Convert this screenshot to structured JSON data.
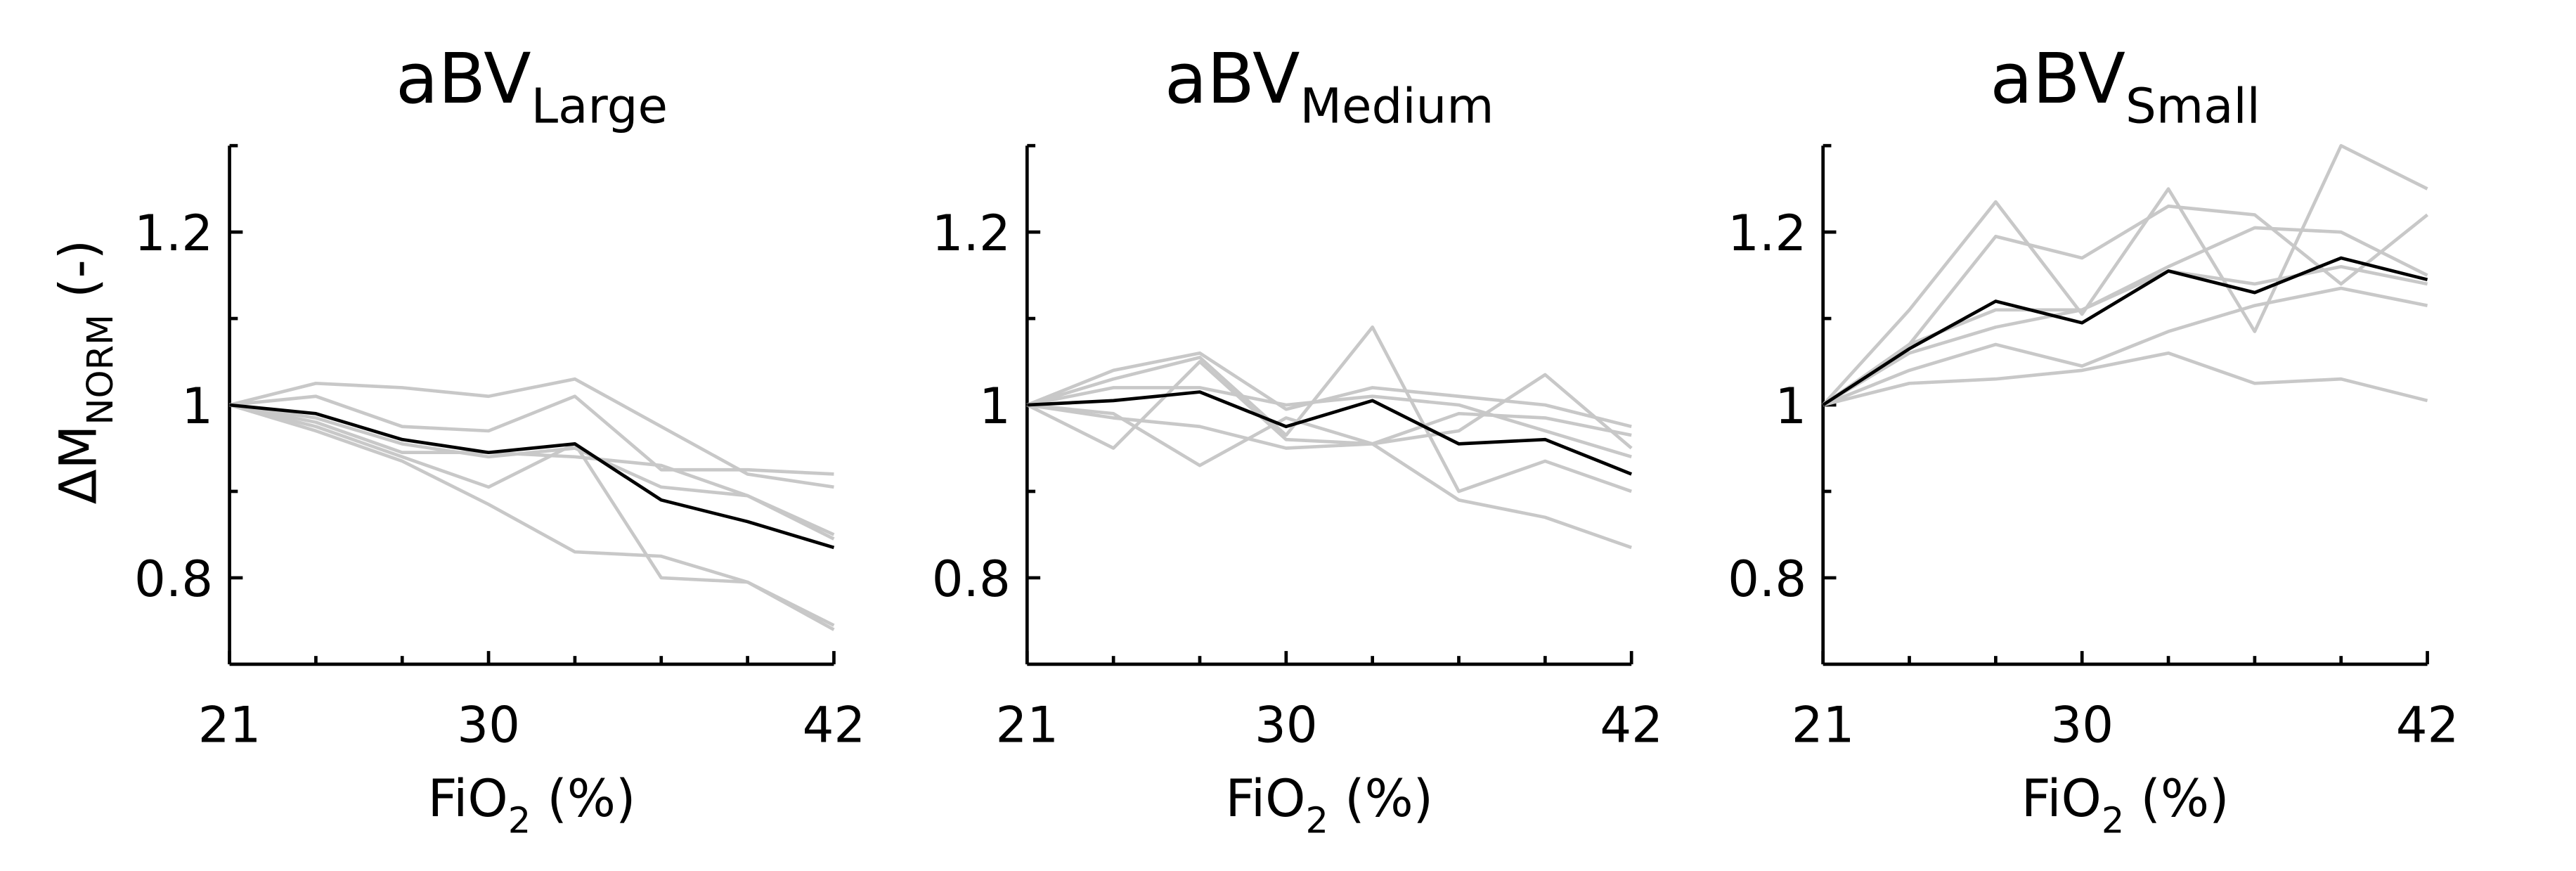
{
  "chart_data": [
    {
      "type": "line",
      "title": "aBV",
      "title_sub": "Large",
      "y_label": {
        "text": "ΔM",
        "sub": "NORM",
        "suffix": " (-)"
      },
      "x_label": {
        "text": "FiO",
        "sub": "2",
        "suffix": " (%)"
      },
      "x": [
        21,
        24,
        27,
        30,
        33,
        36,
        39,
        42
      ],
      "xlim": [
        21,
        42
      ],
      "xticks": [
        21,
        30,
        42
      ],
      "xminor": [
        24,
        27,
        33,
        36,
        39
      ],
      "ylim": [
        0.7,
        1.3
      ],
      "yticks": [
        0.8,
        1.0,
        1.2
      ],
      "yminor": [
        0.9,
        1.1,
        1.3
      ],
      "series": [
        {
          "color": "#c8c8c8",
          "values": [
            1.0,
            1.025,
            1.02,
            1.01,
            1.03,
            0.975,
            0.92,
            0.905
          ]
        },
        {
          "color": "#c8c8c8",
          "values": [
            1.0,
            1.01,
            0.975,
            0.97,
            1.01,
            0.925,
            0.925,
            0.92
          ]
        },
        {
          "color": "#c8c8c8",
          "values": [
            1.0,
            0.975,
            0.94,
            0.905,
            0.955,
            0.8,
            0.795,
            0.745
          ]
        },
        {
          "color": "#c8c8c8",
          "values": [
            1.0,
            0.97,
            0.935,
            0.885,
            0.83,
            0.825,
            0.795,
            0.74
          ]
        },
        {
          "color": "#c8c8c8",
          "values": [
            1.0,
            0.98,
            0.945,
            0.945,
            0.94,
            0.93,
            0.895,
            0.85
          ]
        },
        {
          "color": "#c8c8c8",
          "values": [
            1.0,
            0.985,
            0.955,
            0.94,
            0.95,
            0.905,
            0.895,
            0.845
          ]
        },
        {
          "color": "#000000",
          "values": [
            1.0,
            0.99,
            0.96,
            0.945,
            0.955,
            0.89,
            0.865,
            0.835
          ]
        }
      ]
    },
    {
      "type": "line",
      "title": "aBV",
      "title_sub": "Medium",
      "x_label": {
        "text": "FiO",
        "sub": "2",
        "suffix": " (%)"
      },
      "x": [
        21,
        24,
        27,
        30,
        33,
        36,
        39,
        42
      ],
      "xlim": [
        21,
        42
      ],
      "xticks": [
        21,
        30,
        42
      ],
      "xminor": [
        24,
        27,
        33,
        36,
        39
      ],
      "ylim": [
        0.7,
        1.3
      ],
      "yticks": [
        0.8,
        1.0,
        1.2
      ],
      "yminor": [
        0.9,
        1.1,
        1.3
      ],
      "series": [
        {
          "color": "#c8c8c8",
          "values": [
            1.0,
            1.04,
            1.06,
            0.995,
            1.02,
            1.01,
            1.0,
            0.975
          ]
        },
        {
          "color": "#c8c8c8",
          "values": [
            1.0,
            1.03,
            1.055,
            0.965,
            1.09,
            0.9,
            0.935,
            0.9
          ]
        },
        {
          "color": "#c8c8c8",
          "values": [
            1.0,
            0.95,
            1.05,
            0.96,
            0.955,
            0.97,
            1.035,
            0.95
          ]
        },
        {
          "color": "#c8c8c8",
          "values": [
            1.0,
            0.99,
            0.93,
            0.985,
            0.955,
            0.89,
            0.87,
            0.835
          ]
        },
        {
          "color": "#c8c8c8",
          "values": [
            1.0,
            0.985,
            0.975,
            0.95,
            0.955,
            0.99,
            0.985,
            0.965
          ]
        },
        {
          "color": "#c8c8c8",
          "values": [
            1.0,
            1.02,
            1.02,
            1.0,
            1.01,
            1.0,
            0.97,
            0.94
          ]
        },
        {
          "color": "#000000",
          "values": [
            1.0,
            1.005,
            1.015,
            0.975,
            1.005,
            0.955,
            0.96,
            0.92
          ]
        }
      ]
    },
    {
      "type": "line",
      "title": "aBV",
      "title_sub": "Small",
      "x_label": {
        "text": "FiO",
        "sub": "2",
        "suffix": " (%)"
      },
      "x": [
        21,
        24,
        27,
        30,
        33,
        36,
        39,
        42
      ],
      "xlim": [
        21,
        42
      ],
      "xticks": [
        21,
        30,
        42
      ],
      "xminor": [
        24,
        27,
        33,
        36,
        39
      ],
      "ylim": [
        0.7,
        1.3
      ],
      "yticks": [
        0.8,
        1.0,
        1.2
      ],
      "yminor": [
        0.9,
        1.1,
        1.3
      ],
      "series": [
        {
          "color": "#c8c8c8",
          "values": [
            1.0,
            1.11,
            1.235,
            1.105,
            1.25,
            1.085,
            1.3,
            1.25
          ]
        },
        {
          "color": "#c8c8c8",
          "values": [
            1.0,
            1.07,
            1.195,
            1.17,
            1.23,
            1.22,
            1.14,
            1.22
          ]
        },
        {
          "color": "#c8c8c8",
          "values": [
            1.0,
            1.06,
            1.09,
            1.11,
            1.16,
            1.205,
            1.2,
            1.15
          ]
        },
        {
          "color": "#c8c8c8",
          "values": [
            1.0,
            1.04,
            1.07,
            1.045,
            1.085,
            1.115,
            1.135,
            1.115
          ]
        },
        {
          "color": "#c8c8c8",
          "values": [
            1.0,
            1.025,
            1.03,
            1.04,
            1.06,
            1.025,
            1.03,
            1.005
          ]
        },
        {
          "color": "#c8c8c8",
          "values": [
            1.0,
            1.07,
            1.11,
            1.11,
            1.155,
            1.14,
            1.16,
            1.14
          ]
        },
        {
          "color": "#000000",
          "values": [
            1.0,
            1.065,
            1.12,
            1.095,
            1.155,
            1.13,
            1.17,
            1.145
          ]
        }
      ]
    }
  ]
}
